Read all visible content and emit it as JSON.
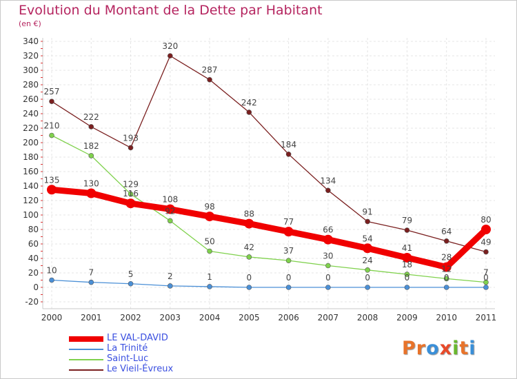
{
  "header": {
    "title": "Evolution du Montant de la Dette par Habitant",
    "subtitle": "(en €)"
  },
  "logo": {
    "text": "Proxiti",
    "colors": [
      "#e8732a",
      "#e8732a",
      "#3a8fd8",
      "#e84a2a",
      "#6ab82e",
      "#e8732a",
      "#3a8fd8"
    ]
  },
  "chart_data": {
    "type": "line",
    "title": "Evolution du Montant de la Dette par Habitant",
    "subtitle": "(en €)",
    "x": [
      "2000",
      "2001",
      "2002",
      "2003",
      "2004",
      "2005",
      "2006",
      "2007",
      "2008",
      "2009",
      "2010",
      "2011"
    ],
    "ylim": [
      -20,
      340
    ],
    "yticks": [
      -20,
      0,
      20,
      40,
      60,
      80,
      100,
      120,
      140,
      160,
      180,
      200,
      220,
      240,
      260,
      280,
      300,
      320,
      340
    ],
    "grid": true,
    "legend_position": "bottom-left",
    "series": [
      {
        "name": "Le Vieil-Évreux",
        "color": "#7a1f1f",
        "values": [
          257,
          222,
          193,
          320,
          287,
          242,
          184,
          134,
          91,
          79,
          64,
          49
        ]
      },
      {
        "name": "Saint-Luc",
        "color": "#7fd14c",
        "values": [
          210,
          182,
          129,
          92,
          50,
          42,
          37,
          30,
          24,
          18,
          12,
          7
        ]
      },
      {
        "name": "La Trinité",
        "color": "#4a8fd6",
        "values": [
          10,
          7,
          5,
          2,
          1,
          0,
          0,
          0,
          0,
          0,
          0,
          0
        ]
      },
      {
        "name": "LE VAL-DAVID",
        "color": "#f00000",
        "values": [
          135,
          130,
          116,
          108,
          98,
          88,
          77,
          66,
          54,
          41,
          28,
          80
        ]
      }
    ],
    "legend_order": [
      "LE VAL-DAVID",
      "La Trinité",
      "Saint-Luc",
      "Le Vieil-Évreux"
    ]
  }
}
